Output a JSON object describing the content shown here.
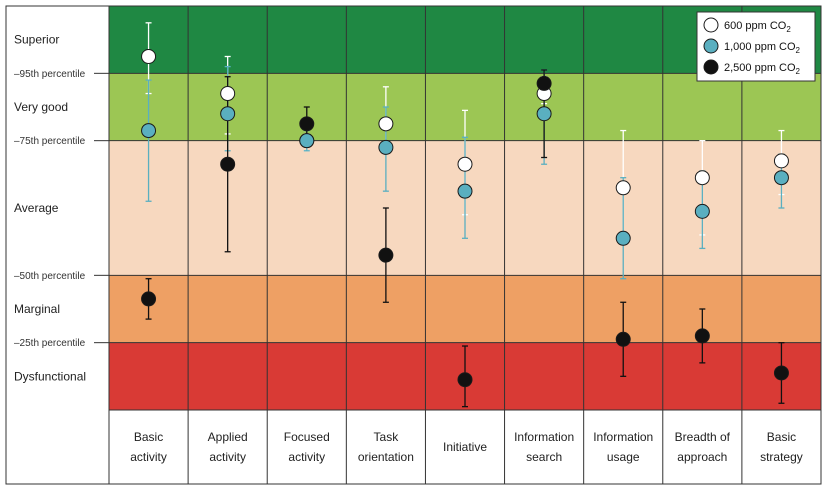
{
  "chart_data": {
    "type": "scatter",
    "categories": [
      [
        "Basic",
        "activity"
      ],
      [
        "Applied",
        "activity"
      ],
      [
        "Focused",
        "activity"
      ],
      [
        "Task",
        "orientation"
      ],
      [
        "Initiative"
      ],
      [
        "Information",
        "search"
      ],
      [
        "Information",
        "usage"
      ],
      [
        "Breadth of",
        "approach"
      ],
      [
        "Basic",
        "strategy"
      ]
    ],
    "bands": [
      {
        "label": "Dysfunctional",
        "from": 0,
        "to": 1,
        "color": "#d93a35"
      },
      {
        "label": "Marginal",
        "from": 1,
        "to": 2,
        "color": "#eea064"
      },
      {
        "label": "Average",
        "from": 2,
        "to": 4,
        "color": "#f7d8bf"
      },
      {
        "label": "Very good",
        "from": 4,
        "to": 5,
        "color": "#9cc654"
      },
      {
        "label": "Superior",
        "from": 5,
        "to": 6,
        "color": "#1f8843"
      }
    ],
    "thresholds": [
      {
        "label": "25th percentile",
        "value": 1
      },
      {
        "label": "50th percentile",
        "value": 2
      },
      {
        "label": "75th percentile",
        "value": 4
      },
      {
        "label": "95th percentile",
        "value": 5
      }
    ],
    "ylim": [
      0,
      6
    ],
    "series": [
      {
        "name": "600 ppm CO",
        "name_sub": "2",
        "fill": "#ffffff",
        "errorbar_color": "#ffffff",
        "values": [
          5.25,
          4.7,
          4.0,
          4.25,
          3.65,
          4.7,
          3.3,
          3.45,
          3.7
        ],
        "low": [
          4.7,
          4.1,
          3.85,
          3.8,
          2.9,
          4.55,
          2.5,
          2.6,
          3.2
        ],
        "high": [
          5.75,
          5.25,
          4.1,
          4.8,
          4.45,
          4.95,
          4.15,
          4.0,
          4.15
        ]
      },
      {
        "name": "1,000 ppm CO",
        "name_sub": "2",
        "fill": "#5aafc0",
        "errorbar_color": "#5aafc0",
        "values": [
          4.15,
          4.4,
          4.0,
          3.9,
          3.25,
          4.4,
          2.55,
          2.95,
          3.45
        ],
        "low": [
          3.1,
          3.85,
          3.85,
          3.25,
          2.55,
          3.65,
          1.95,
          2.4,
          3.0
        ],
        "high": [
          4.9,
          5.1,
          4.15,
          4.5,
          4.05,
          5.05,
          3.45,
          3.55,
          3.8
        ]
      },
      {
        "name": "2,500 ppm CO",
        "name_sub": "2",
        "fill": "#111111",
        "errorbar_color": "#111111",
        "values": [
          1.65,
          3.65,
          4.25,
          2.3,
          0.45,
          4.85,
          1.05,
          1.1,
          0.55
        ],
        "low": [
          1.35,
          2.35,
          4.0,
          1.6,
          0.05,
          3.75,
          0.5,
          0.7,
          0.1
        ],
        "high": [
          1.95,
          4.95,
          4.5,
          3.0,
          0.95,
          5.05,
          1.6,
          1.5,
          1.0
        ]
      }
    ],
    "legend": "top-right",
    "grid": true
  }
}
